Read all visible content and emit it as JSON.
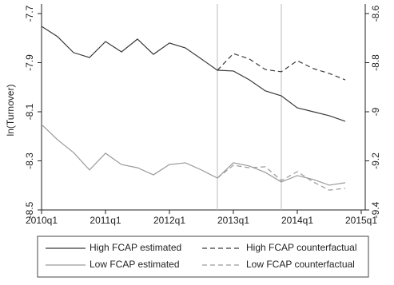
{
  "chart_data": {
    "type": "line",
    "y_label": "ln(Turnover)",
    "x": [
      "2010q1",
      "2010q2",
      "2010q3",
      "2010q4",
      "2011q1",
      "2011q2",
      "2011q3",
      "2011q4",
      "2012q1",
      "2012q2",
      "2012q3",
      "2012q4",
      "2013q1",
      "2013q2",
      "2013q3",
      "2013q4",
      "2014q1",
      "2014q2",
      "2014q3",
      "2014q4"
    ],
    "xlim": [
      "2010q1",
      "2015q1"
    ],
    "xticks": [
      "2010q1",
      "2011q1",
      "2012q1",
      "2013q1",
      "2014q1",
      "2015q1"
    ],
    "ylim": [
      -8.5,
      -7.7
    ],
    "yticks": [
      -8.5,
      -8.3,
      -8.1,
      -7.9,
      -7.7
    ],
    "y2lim": [
      -9.4,
      -8.6
    ],
    "y2ticks": [
      -9.4,
      -9.2,
      -9,
      -8.8,
      -8.6
    ],
    "vlines": [
      "2012q4",
      "2013q4"
    ],
    "series": [
      {
        "name": "High FCAP estimated",
        "color": "#3a3a3a",
        "dash": "solid",
        "values": [
          -7.752,
          -7.794,
          -7.859,
          -7.879,
          -7.814,
          -7.856,
          -7.804,
          -7.866,
          -7.82,
          -7.84,
          -7.885,
          -7.931,
          -7.934,
          -7.97,
          -8.015,
          -8.035,
          -8.084,
          -8.1,
          -8.116,
          -8.139
        ]
      },
      {
        "name": "High FCAP counterfactual",
        "color": "#3a3a3a",
        "dash": "dashed",
        "values": [
          null,
          null,
          null,
          null,
          null,
          null,
          null,
          null,
          null,
          null,
          null,
          -7.931,
          -7.863,
          -7.885,
          -7.928,
          -7.937,
          -7.892,
          -7.924,
          -7.944,
          -7.97
        ]
      },
      {
        "name": "Low FCAP estimated",
        "color": "#9a9a9a",
        "dash": "solid",
        "axis": "y2",
        "values": [
          -9.052,
          -9.114,
          -9.166,
          -9.237,
          -9.169,
          -9.215,
          -9.228,
          -9.257,
          -9.215,
          -9.208,
          -9.237,
          -9.27,
          -9.208,
          -9.221,
          -9.247,
          -9.286,
          -9.26,
          -9.276,
          -9.299,
          -9.289
        ]
      },
      {
        "name": "Low FCAP counterfactual",
        "color": "#9a9a9a",
        "dash": "dashed",
        "axis": "y2",
        "values": [
          null,
          null,
          null,
          null,
          null,
          null,
          null,
          null,
          null,
          null,
          null,
          -9.27,
          -9.218,
          -9.228,
          -9.224,
          -9.28,
          -9.244,
          -9.286,
          -9.319,
          -9.312
        ]
      }
    ]
  }
}
